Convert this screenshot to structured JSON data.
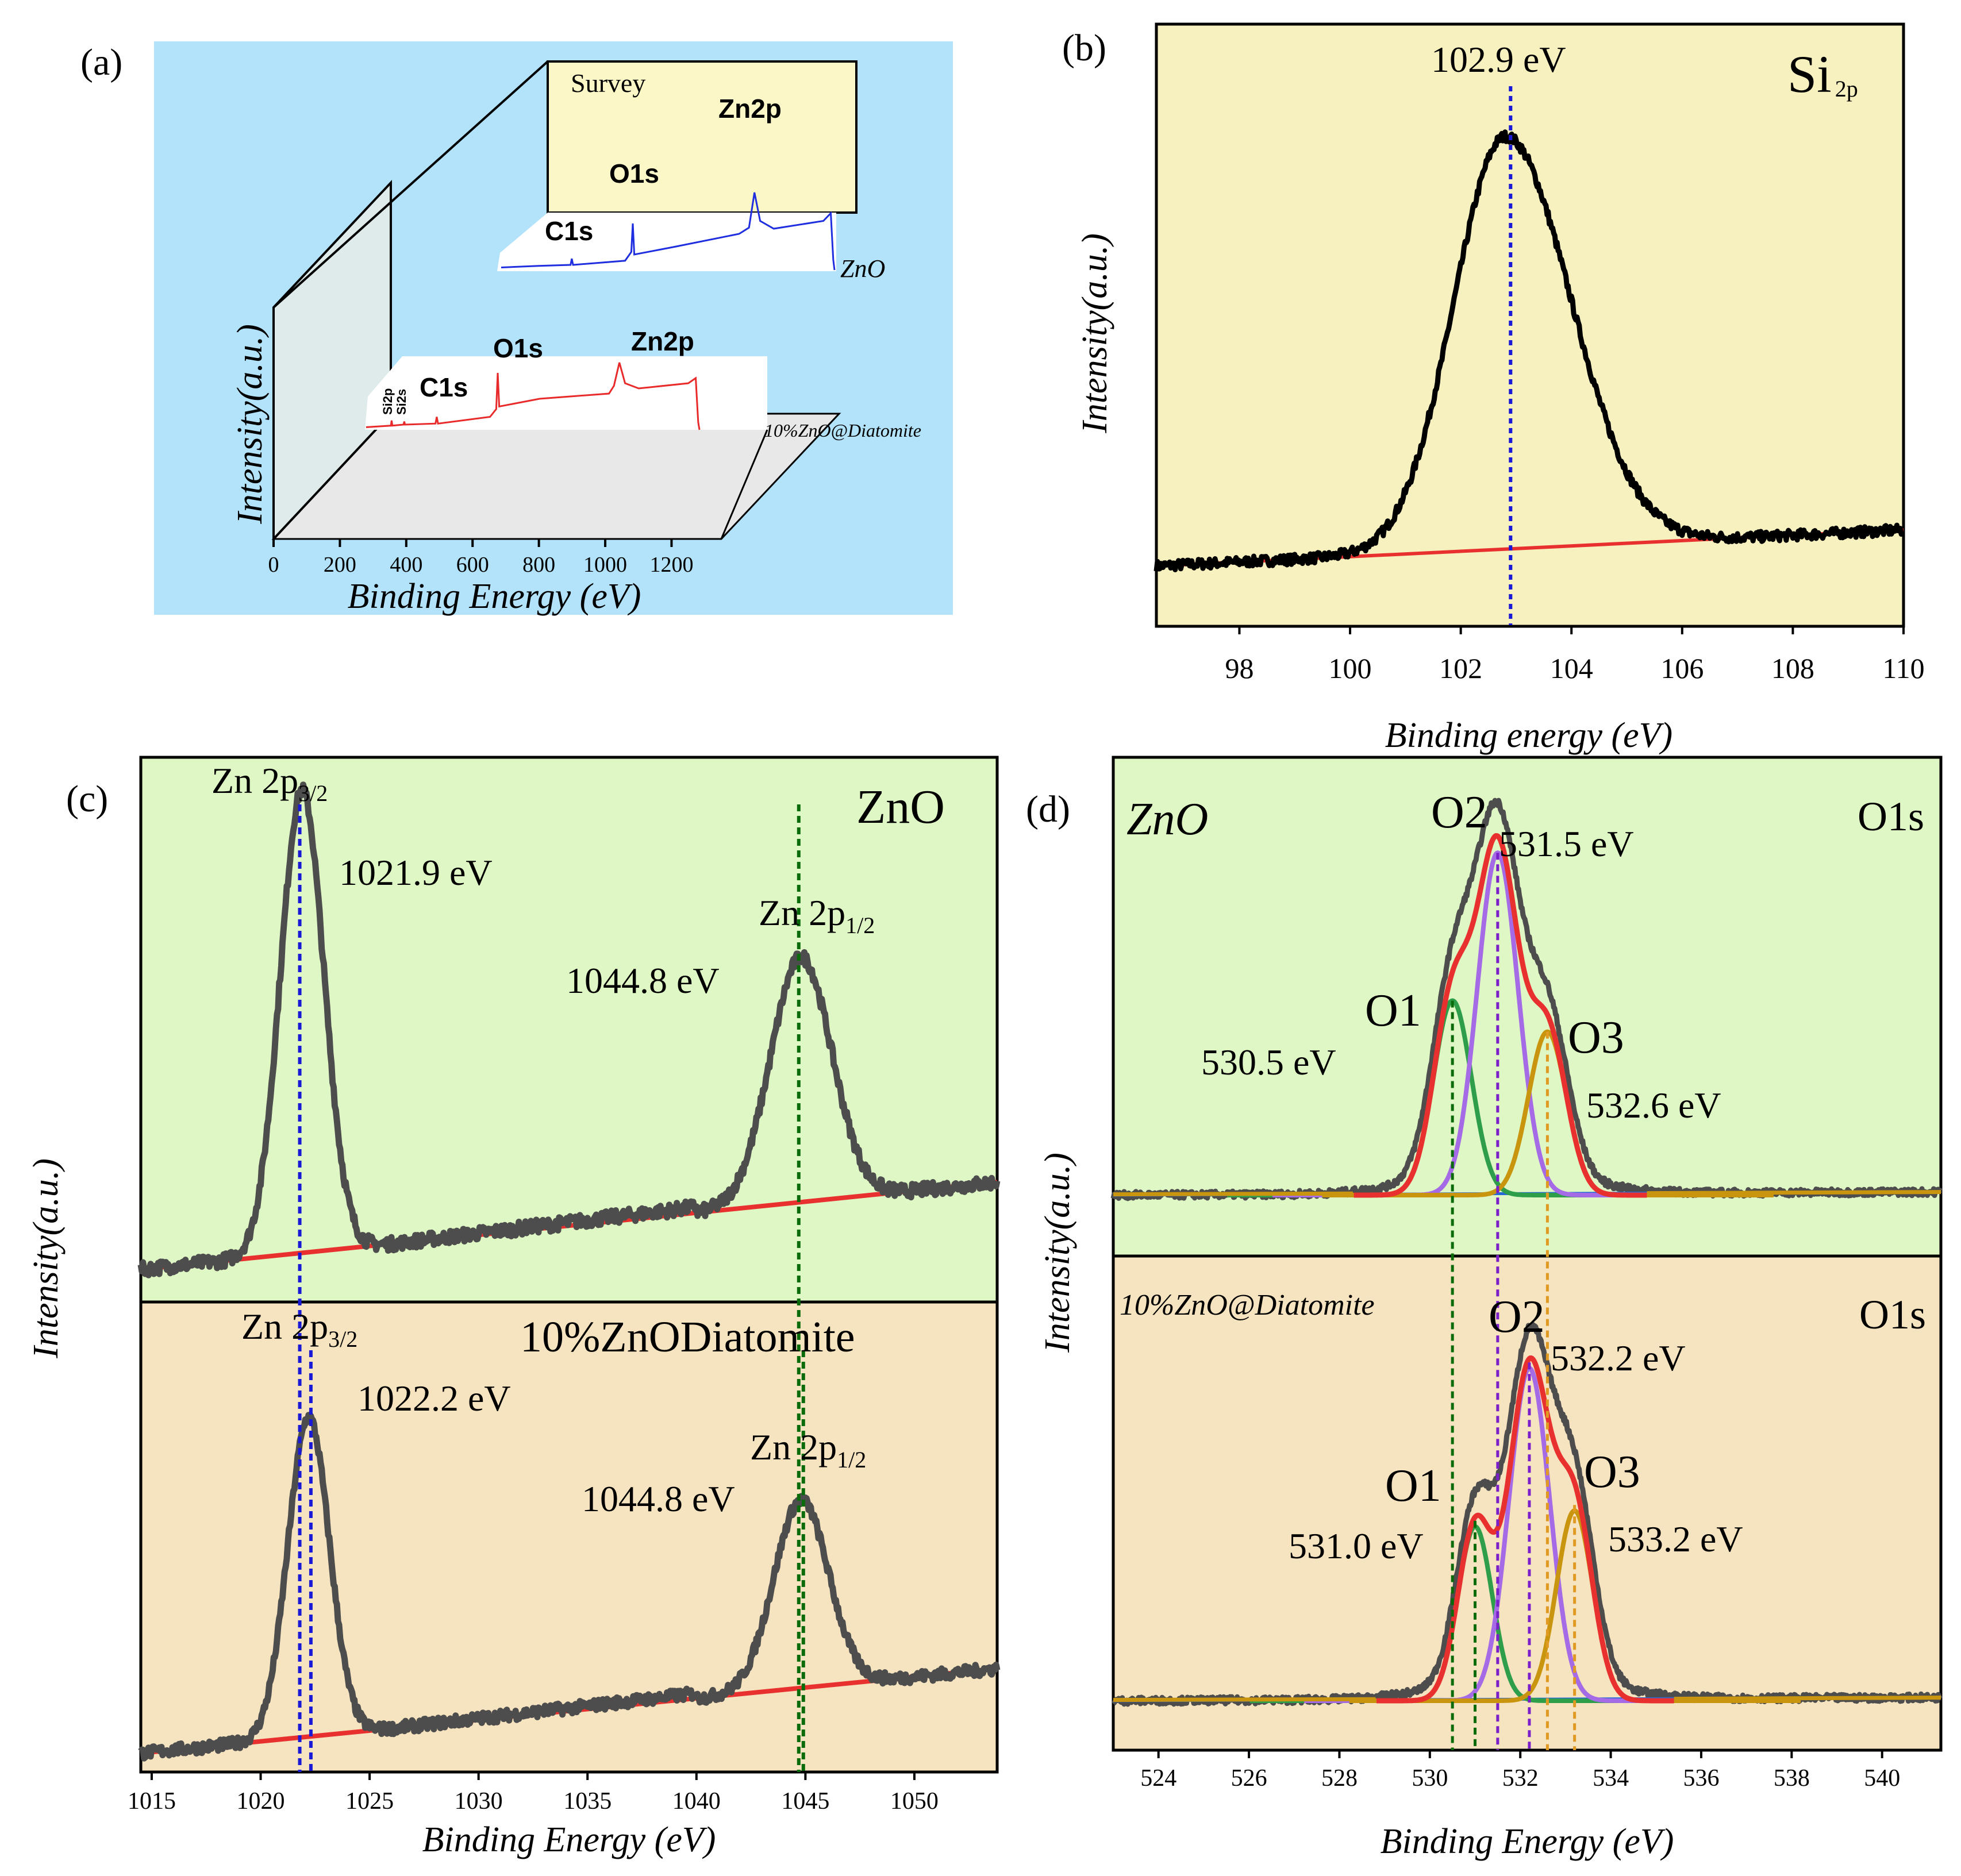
{
  "panels": {
    "a": {
      "letter": "(a)"
    },
    "b": {
      "letter": "(b)"
    },
    "c": {
      "letter": "(c)"
    },
    "d": {
      "letter": "(d)"
    }
  },
  "colors": {
    "panel_a_bg": "#b3e3fa",
    "panel_b_bg": "#f7f0bf",
    "panel_green_bg": "#dff7c4",
    "panel_tan_bg": "#f6e3bf",
    "spectrum_gray": "#4d4d4d",
    "baseline_red": "#e8312f",
    "blue": "#1a1ad6",
    "green_dash": "#0a6b0a",
    "purple": "#7a1fc9",
    "orange": "#e09a22"
  },
  "chart_data": [
    {
      "id": "a",
      "type": "line",
      "title": "Survey",
      "xlabel": "Binding Energy (eV)",
      "ylabel": "Intensity(a.u.)",
      "x_ticks": [
        "0",
        "200",
        "400",
        "600",
        "800",
        "1000",
        "1200"
      ],
      "xlim": [
        0,
        1350
      ],
      "series": [
        {
          "name": "ZnO",
          "peak_labels": [
            "C1s",
            "O1s",
            "Zn2p"
          ],
          "peaks_eV": [
            285,
            531,
            1022
          ],
          "x": [
            0,
            150,
            280,
            285,
            290,
            500,
            525,
            531,
            537,
            700,
            960,
            1000,
            1022,
            1045,
            1100,
            1300,
            1330,
            1340,
            1345
          ],
          "y": [
            5,
            8,
            10,
            22,
            10,
            18,
            35,
            90,
            30,
            45,
            70,
            82,
            150,
            95,
            80,
            95,
            110,
            20,
            0
          ]
        },
        {
          "name": "10%ZnO@Diatomite",
          "peak_labels": [
            "Si2p",
            "Si2s",
            "C1s",
            "O1s",
            "Zn2p"
          ],
          "peaks_eV": [
            103,
            154,
            285,
            531,
            1022
          ],
          "x": [
            0,
            100,
            103,
            106,
            151,
            154,
            157,
            280,
            285,
            290,
            500,
            525,
            531,
            537,
            700,
            980,
            1000,
            1022,
            1045,
            1100,
            1300,
            1330,
            1340,
            1345
          ],
          "y": [
            5,
            8,
            18,
            8,
            10,
            16,
            10,
            12,
            25,
            12,
            25,
            40,
            110,
            45,
            60,
            70,
            85,
            130,
            90,
            80,
            90,
            100,
            15,
            0
          ]
        }
      ]
    },
    {
      "id": "b",
      "type": "line",
      "title": "Si 2p",
      "title_main": "Si",
      "title_sub": "2p",
      "xlabel": "Binding energy (eV)",
      "ylabel": "Intensity(a.u.)",
      "xlim": [
        96.5,
        110
      ],
      "ylim": [
        0,
        1
      ],
      "x_ticks": [
        "98",
        "100",
        "102",
        "104",
        "106",
        "108",
        "110"
      ],
      "peak_eV": 102.9,
      "peak_label": "102.9 eV",
      "spectrum": {
        "center": 102.8,
        "sigma": 1.05,
        "amplitude": 0.8,
        "skew": 0.12
      },
      "baseline": {
        "x": [
          96.5,
          110
        ],
        "y": [
          0.05,
          0.12
        ]
      }
    },
    {
      "id": "c",
      "type": "line",
      "xlabel": "Binding Energy (eV)",
      "ylabel": "Intensity(a.u.)",
      "xlim": [
        1014.5,
        1053.8
      ],
      "x_ticks": [
        "1015",
        "1020",
        "1025",
        "1030",
        "1035",
        "1040",
        "1045",
        "1050"
      ],
      "sub_panels": [
        {
          "name": "ZnO",
          "peaks": [
            {
              "label": "Zn 2p",
              "sub": "3/2",
              "eV": 1021.9,
              "value_label": "1021.9 eV",
              "amplitude": 0.85,
              "sigma": 1.0
            },
            {
              "label": "Zn 2p",
              "sub": "1/2",
              "eV": 1044.8,
              "value_label": "1044.8 eV",
              "amplitude": 0.45,
              "sigma": 1.4
            }
          ],
          "baseline": {
            "x": [
              1014.5,
              1053.8
            ],
            "y": [
              0.06,
              0.22
            ]
          }
        },
        {
          "name": "10%ZnODiatomite",
          "peaks": [
            {
              "label": "Zn 2p",
              "sub": "3/2",
              "eV": 1022.2,
              "value_label": "1022.2 eV",
              "amplitude": 0.68,
              "sigma": 0.95
            },
            {
              "label": "Zn 2p",
              "sub": "1/2",
              "eV": 1044.8,
              "value_label": "1044.8 eV",
              "amplitude": 0.4,
              "sigma": 1.25
            }
          ],
          "baseline": {
            "x": [
              1014.5,
              1053.8
            ],
            "y": [
              0.04,
              0.22
            ]
          }
        }
      ]
    },
    {
      "id": "d",
      "type": "line",
      "xlabel": "Binding Energy (eV)",
      "ylabel": "Intensity(a.u.)",
      "xlim": [
        523,
        541.3
      ],
      "x_ticks": [
        "524",
        "526",
        "528",
        "530",
        "532",
        "534",
        "536",
        "538",
        "540"
      ],
      "sub_panels": [
        {
          "name": "ZnO",
          "core_level": "O1s",
          "components": [
            {
              "name": "O1",
              "eV": 530.5,
              "value_label": "530.5 eV",
              "amplitude": 0.5,
              "sigma": 0.42
            },
            {
              "name": "O2",
              "eV": 531.5,
              "value_label": "531.5 eV",
              "amplitude": 0.88,
              "sigma": 0.45
            },
            {
              "name": "O3",
              "eV": 532.6,
              "value_label": "532.6 eV",
              "amplitude": 0.42,
              "sigma": 0.42
            }
          ]
        },
        {
          "name": "10%ZnO@Diatomite",
          "core_level": "O1s",
          "components": [
            {
              "name": "O1",
              "eV": 531.0,
              "value_label": "531.0 eV",
              "amplitude": 0.44,
              "sigma": 0.38
            },
            {
              "name": "O2",
              "eV": 532.2,
              "value_label": "532.2 eV",
              "amplitude": 0.84,
              "sigma": 0.45
            },
            {
              "name": "O3",
              "eV": 533.2,
              "value_label": "533.2 eV",
              "amplitude": 0.48,
              "sigma": 0.4
            }
          ]
        }
      ]
    }
  ]
}
